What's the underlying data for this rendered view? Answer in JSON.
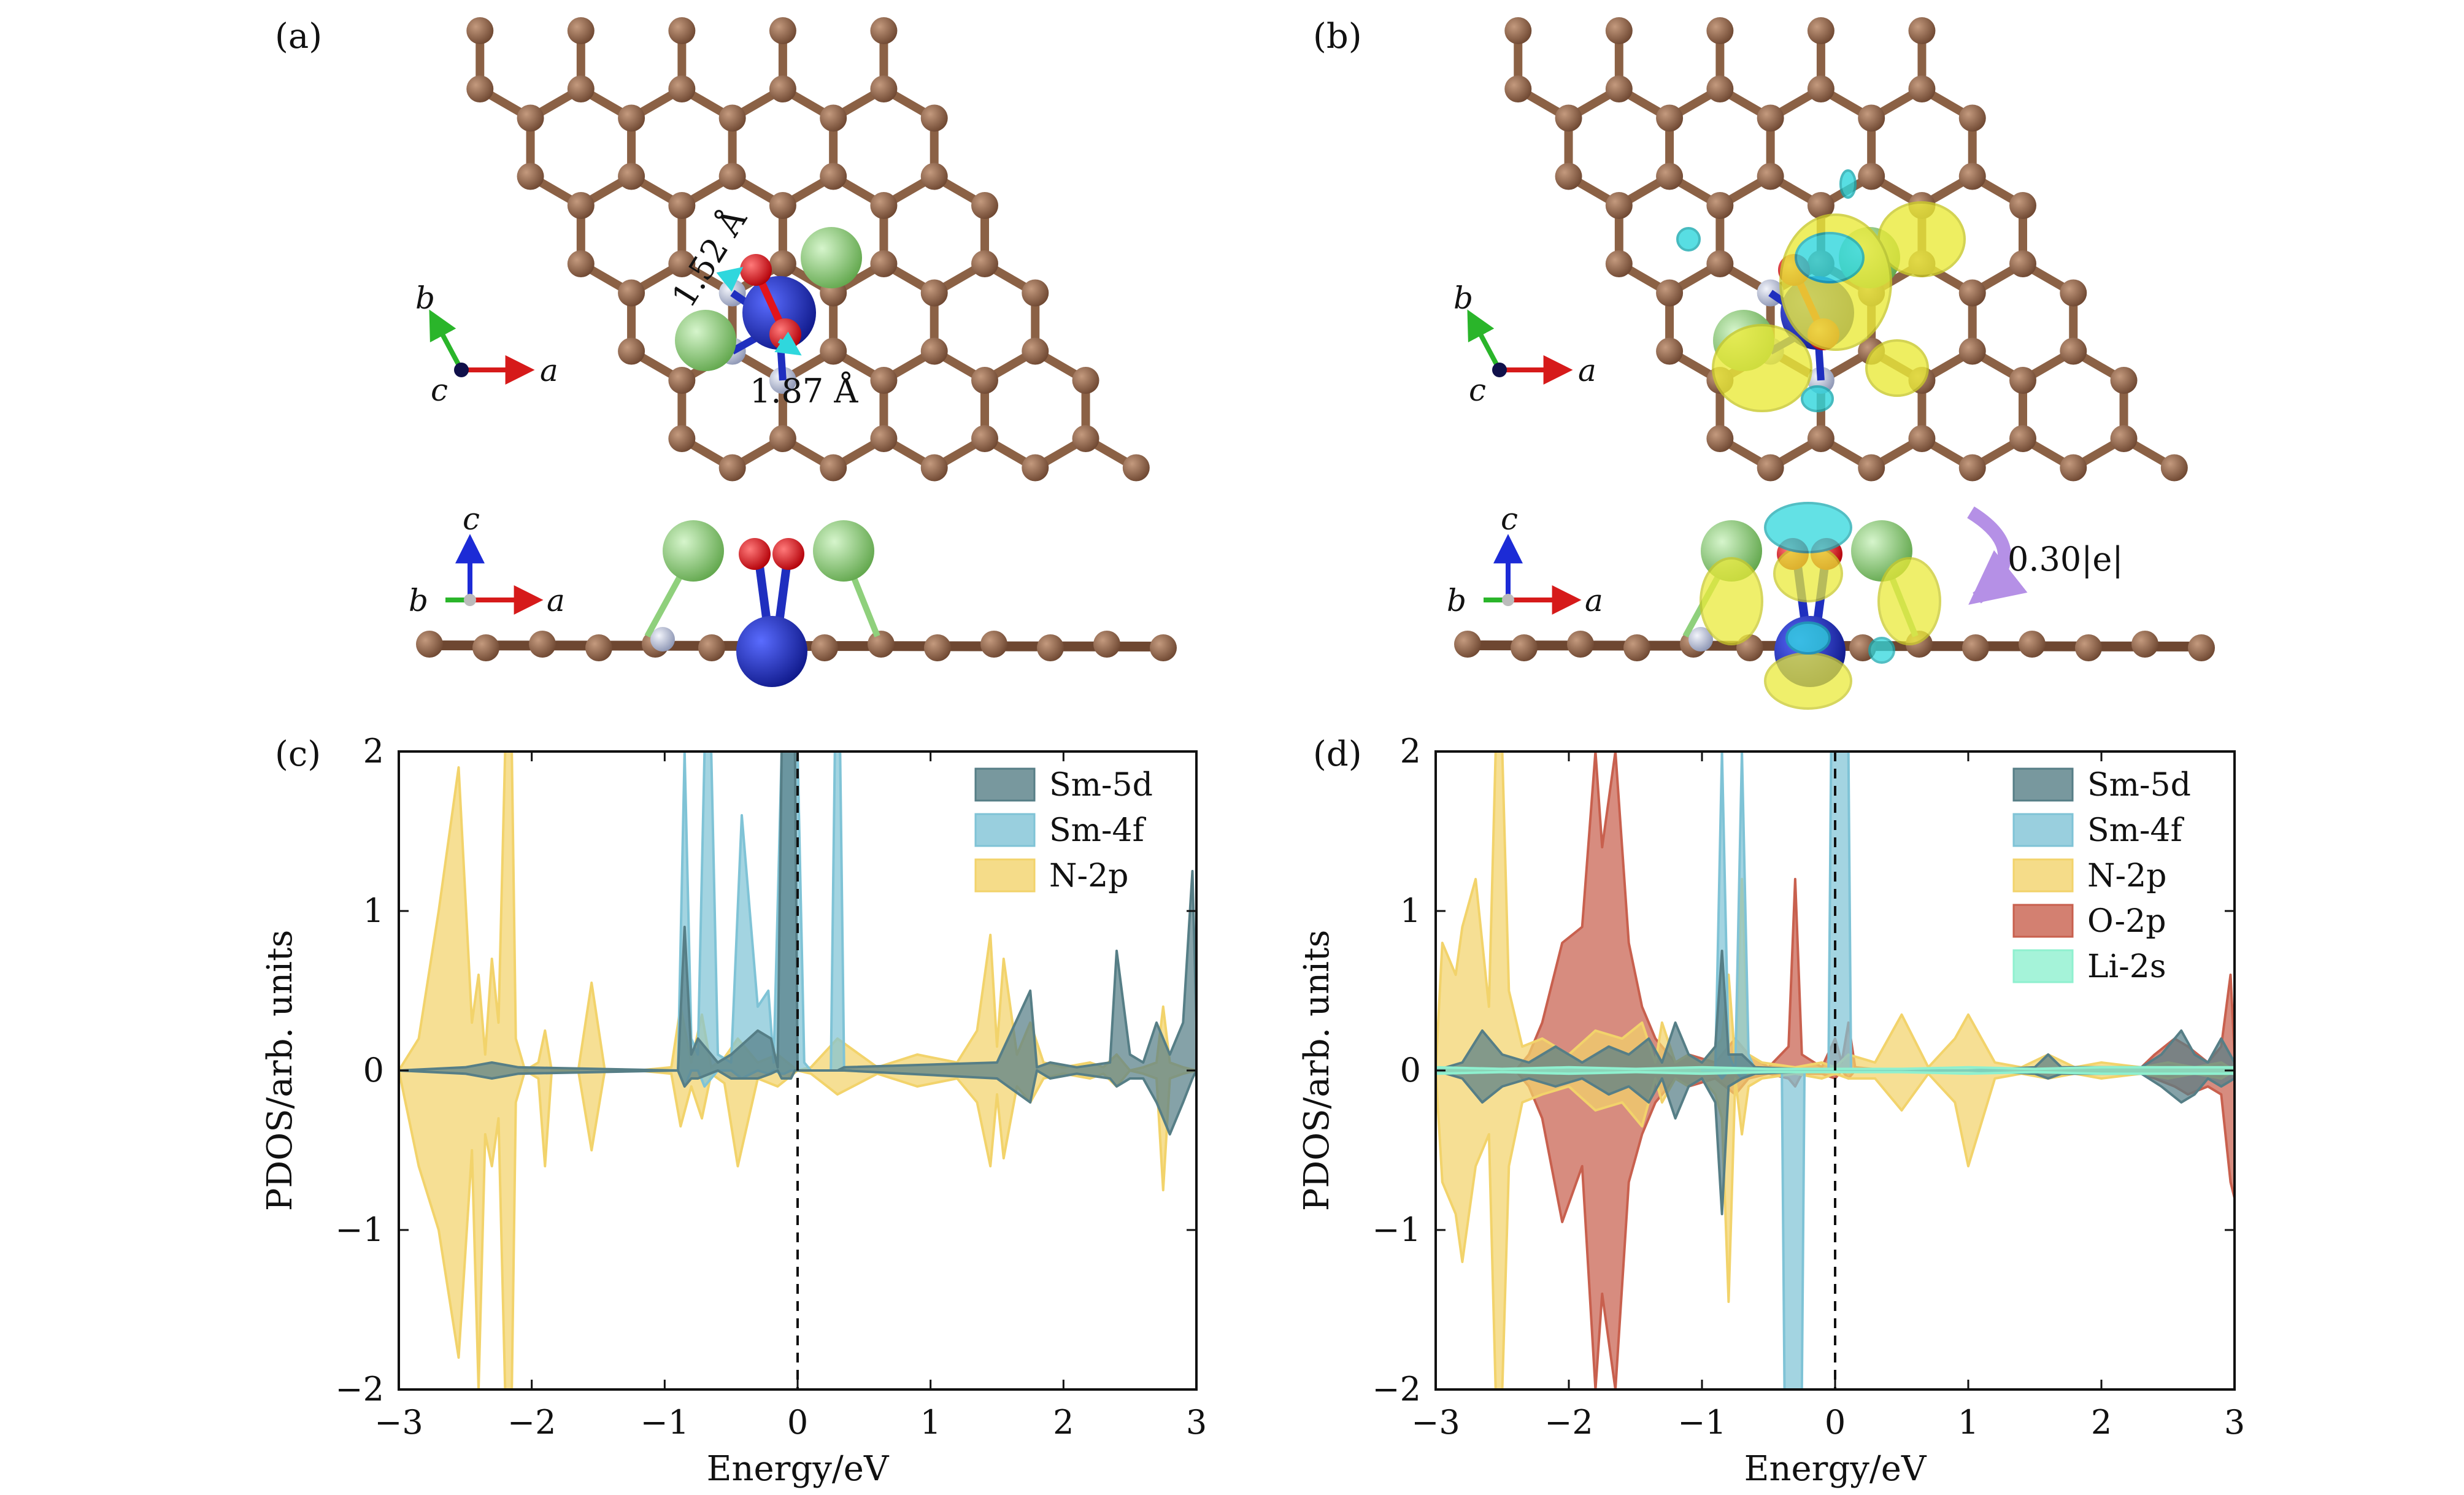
{
  "panels": {
    "a": {
      "label": "(a)",
      "bond_1": "1.52 Å",
      "bond_2": "1.87 Å"
    },
    "b": {
      "label": "(b)",
      "charge_transfer": "0.30|e|"
    },
    "c": {
      "label": "(c)"
    },
    "d": {
      "label": "(d)"
    }
  },
  "crystal_axes": {
    "a": "a",
    "b": "b",
    "c": "c"
  },
  "colors": {
    "carbon": "#8b6145",
    "nitrogen": "#b0b8cf",
    "samarium": "#1f2fbf",
    "oxygen": "#e3141b",
    "lithium": "#8fd07c",
    "iso_positive": "#eaea3a",
    "iso_negative": "#2fd7dd",
    "arrow_transfer": "#b590e6",
    "Sm-5d": "#567e86",
    "Sm-4f": "#7fc3d6",
    "N-2p": "#f2d36b",
    "O-2p": "#c8604e",
    "Li-2s": "#8ff0cf"
  },
  "chart_data": [
    {
      "type": "area",
      "panel": "(c)",
      "xlabel": "Energy/eV",
      "ylabel": "PDOS/arb. units",
      "xlim": [
        -3,
        3
      ],
      "ylim": [
        -2,
        2
      ],
      "xticks": [
        -3,
        -2,
        -1,
        0,
        1,
        2,
        3
      ],
      "yticks": [
        -2,
        -1,
        0,
        1,
        2
      ],
      "fermi_level": 0,
      "legend_position": "top-right",
      "series": [
        {
          "name": "N-2p",
          "color": "#f2d36b",
          "x": [
            -3,
            -2.85,
            -2.7,
            -2.55,
            -2.45,
            -2.4,
            -2.35,
            -2.3,
            -2.25,
            -2.2,
            -2.17,
            -2.15,
            -2.12,
            -2.05,
            -1.95,
            -1.9,
            -1.85,
            -1.65,
            -1.55,
            -1.45,
            -1.2,
            -0.95,
            -0.88,
            -0.8,
            -0.72,
            -0.65,
            -0.55,
            -0.45,
            -0.3,
            -0.15,
            0,
            0.1,
            0.3,
            0.6,
            0.9,
            1.2,
            1.35,
            1.45,
            1.5,
            1.55,
            1.65,
            1.75,
            1.85,
            2.0,
            2.2,
            2.3,
            2.4,
            2.5,
            2.6,
            2.7,
            2.75,
            2.8,
            2.9,
            3
          ],
          "upper": [
            0,
            0.2,
            1.0,
            1.9,
            0.3,
            0.6,
            0.1,
            0.7,
            0.3,
            2.0,
            2.0,
            2.0,
            0.2,
            0,
            0.05,
            0.25,
            0,
            0,
            0.55,
            0,
            0,
            0.02,
            0.4,
            0.05,
            0.35,
            0.02,
            0.08,
            0.2,
            0.05,
            0.1,
            0,
            0.02,
            0.2,
            0.02,
            0.1,
            0.05,
            0.25,
            0.85,
            0.15,
            0.7,
            0.1,
            0.3,
            0.05,
            0.02,
            0.05,
            0.02,
            0.1,
            0,
            0.02,
            0.05,
            0.4,
            0.05,
            0.02,
            0
          ],
          "lower": [
            0,
            -0.6,
            -1.0,
            -1.8,
            -0.5,
            -2.0,
            -0.4,
            -0.6,
            -0.3,
            -2.0,
            -2.0,
            -2.0,
            -0.2,
            0,
            -0.05,
            -0.6,
            0,
            0,
            -0.5,
            0,
            0,
            -0.02,
            -0.35,
            -0.1,
            -0.3,
            -0.02,
            -0.08,
            -0.6,
            -0.05,
            -0.1,
            0,
            -0.02,
            -0.15,
            -0.02,
            -0.1,
            -0.05,
            -0.2,
            -0.6,
            -0.15,
            -0.55,
            -0.1,
            -0.2,
            -0.05,
            -0.02,
            -0.05,
            -0.02,
            -0.1,
            0,
            -0.02,
            -0.05,
            -0.75,
            -0.05,
            -0.02,
            0
          ]
        },
        {
          "name": "Sm-4f",
          "color": "#7fc3d6",
          "x": [
            -1,
            -0.9,
            -0.85,
            -0.8,
            -0.75,
            -0.7,
            -0.65,
            -0.6,
            -0.5,
            -0.42,
            -0.3,
            -0.22,
            -0.18,
            -0.12,
            -0.1,
            -0.05,
            0,
            0.05,
            0.1,
            0.25,
            0.28,
            0.32,
            0.35,
            0.4
          ],
          "upper": [
            0,
            0,
            2.0,
            0.2,
            0.1,
            2.0,
            2.0,
            0.1,
            0.05,
            1.6,
            0.4,
            0.5,
            0.05,
            2.0,
            2.0,
            2.0,
            2.0,
            0.05,
            0,
            0,
            2.0,
            2.0,
            0,
            0
          ],
          "lower": [
            0,
            0,
            -0.1,
            0,
            0,
            -0.1,
            -0.05,
            0,
            0,
            -0.05,
            0,
            -0.02,
            0,
            -0.02,
            -0.02,
            0,
            0,
            0,
            0,
            0,
            0,
            0,
            0,
            0
          ]
        },
        {
          "name": "Sm-5d",
          "color": "#567e86",
          "x": [
            -3,
            -2.5,
            -2.3,
            -2.1,
            -0.9,
            -0.85,
            -0.8,
            -0.75,
            -0.6,
            -0.5,
            -0.3,
            -0.2,
            -0.15,
            -0.12,
            -0.05,
            -0.02,
            0,
            0.3,
            0.35,
            1.5,
            1.75,
            1.8,
            1.9,
            2.1,
            2.35,
            2.4,
            2.5,
            2.6,
            2.7,
            2.8,
            2.9,
            2.97,
            3
          ],
          "upper": [
            0,
            0.02,
            0.05,
            0.02,
            0,
            0.9,
            0.1,
            0.2,
            0.05,
            0.1,
            0.25,
            0.2,
            0.02,
            2.0,
            2.0,
            2.0,
            0,
            0,
            0.02,
            0.05,
            0.5,
            0.02,
            0.05,
            0.02,
            0.05,
            0.75,
            0.1,
            0.05,
            0.3,
            0.1,
            0.3,
            1.25,
            0.3
          ],
          "lower": [
            0,
            -0.02,
            -0.05,
            -0.02,
            0,
            -0.1,
            -0.05,
            -0.05,
            0,
            -0.05,
            -0.05,
            -0.02,
            0,
            -0.05,
            -0.05,
            0,
            0,
            0,
            0,
            -0.05,
            -0.2,
            0,
            -0.05,
            -0.02,
            -0.05,
            -0.1,
            -0.05,
            -0.05,
            -0.2,
            -0.4,
            -0.2,
            -0.05,
            0
          ]
        }
      ]
    },
    {
      "type": "area",
      "panel": "(d)",
      "xlabel": "Energy/eV",
      "ylabel": "PDOS/arb. units",
      "xlim": [
        -3,
        3
      ],
      "ylim": [
        -2,
        2
      ],
      "xticks": [
        -3,
        -2,
        -1,
        0,
        1,
        2,
        3
      ],
      "yticks": [
        -2,
        -1,
        0,
        1,
        2
      ],
      "fermi_level": 0,
      "legend_position": "top-right",
      "series": [
        {
          "name": "O-2p",
          "color": "#c8604e",
          "x": [
            -3,
            -2.4,
            -2.3,
            -2.2,
            -2.05,
            -1.9,
            -1.8,
            -1.75,
            -1.65,
            -1.55,
            -1.45,
            -1.35,
            -1.2,
            -1.1,
            -0.9,
            -0.75,
            -0.65,
            -0.5,
            -0.35,
            -0.3,
            -0.25,
            -0.1,
            0,
            0.05,
            0.1,
            0.15,
            0.4,
            1.5,
            2.3,
            2.4,
            2.55,
            2.65,
            2.8,
            2.9,
            2.97,
            3
          ],
          "upper": [
            0,
            0,
            0.1,
            0.3,
            0.8,
            0.9,
            2.0,
            1.4,
            2.0,
            0.8,
            0.4,
            0.2,
            0.05,
            0.1,
            0.05,
            0.2,
            0.1,
            0.02,
            0.15,
            1.2,
            0.1,
            0.02,
            0.2,
            0.05,
            0.3,
            0.02,
            0,
            0,
            0.02,
            0.1,
            0.2,
            0.15,
            0.05,
            0.15,
            0.6,
            0.1
          ],
          "lower": [
            0,
            0,
            -0.1,
            -0.3,
            -0.95,
            -0.6,
            -2.0,
            -1.4,
            -2.0,
            -0.7,
            -0.4,
            -0.2,
            -0.05,
            -0.1,
            -0.05,
            -0.15,
            -0.05,
            -0.02,
            -0.05,
            -0.1,
            -0.02,
            -0.02,
            -0.05,
            0,
            -0.05,
            0,
            0,
            0,
            -0.02,
            -0.05,
            -0.1,
            -0.15,
            -0.1,
            -0.15,
            -0.7,
            -0.8
          ]
        },
        {
          "name": "N-2p",
          "color": "#f2d36b",
          "x": [
            -3,
            -2.95,
            -2.85,
            -2.8,
            -2.7,
            -2.6,
            -2.55,
            -2.5,
            -2.45,
            -2.35,
            -2.2,
            -2.0,
            -1.8,
            -1.6,
            -1.45,
            -1.35,
            -1.3,
            -1.2,
            -1.1,
            -1.0,
            -0.9,
            -0.85,
            -0.8,
            -0.75,
            -0.7,
            -0.65,
            -0.55,
            -0.3,
            -0.1,
            0,
            0.1,
            0.3,
            0.5,
            0.7,
            0.9,
            1.0,
            1.2,
            1.4,
            1.6,
            1.8,
            2.0,
            2.3,
            2.5,
            2.7,
            2.9,
            3
          ],
          "upper": [
            0,
            0.8,
            0.6,
            0.9,
            1.2,
            0.4,
            2.0,
            2.0,
            0.5,
            0.15,
            0.2,
            0.1,
            0.25,
            0.2,
            0.3,
            0.05,
            0.3,
            0.05,
            0.1,
            0.05,
            0.15,
            0.2,
            0.6,
            0.05,
            1.2,
            0.1,
            0.05,
            0.02,
            0.05,
            0.02,
            0.1,
            0.05,
            0.35,
            0.02,
            0.2,
            0.35,
            0.05,
            0.02,
            0.1,
            0.02,
            0.05,
            0.02,
            0.05,
            0.02,
            0.05,
            0
          ],
          "lower": [
            0,
            -0.7,
            -0.9,
            -1.2,
            -0.6,
            -0.4,
            -2.0,
            -2.0,
            -0.6,
            -0.2,
            -0.15,
            -0.1,
            -0.25,
            -0.2,
            -0.35,
            -0.05,
            -0.2,
            -0.05,
            -0.1,
            -0.05,
            -0.15,
            -0.3,
            -1.45,
            -0.05,
            -0.4,
            -0.1,
            -0.05,
            -0.02,
            -0.05,
            -0.02,
            -0.05,
            -0.05,
            -0.25,
            -0.02,
            -0.2,
            -0.6,
            -0.05,
            -0.02,
            -0.05,
            -0.02,
            -0.05,
            -0.02,
            -0.05,
            -0.02,
            -0.05,
            0
          ]
        },
        {
          "name": "Sm-4f",
          "color": "#7fc3d6",
          "x": [
            -1.0,
            -0.9,
            -0.85,
            -0.8,
            -0.75,
            -0.7,
            -0.65,
            -0.6,
            -0.4,
            -0.38,
            -0.25,
            -0.23,
            -0.05,
            -0.03,
            0.1,
            0.12
          ],
          "upper": [
            0,
            0,
            2.0,
            0.1,
            0,
            2.0,
            0.1,
            0,
            0,
            0,
            0,
            0,
            0,
            2.0,
            2.0,
            0
          ],
          "lower": [
            0,
            0,
            -0.05,
            0,
            0,
            -0.05,
            0,
            0,
            0,
            -2.0,
            -2.0,
            0,
            0,
            0,
            0,
            0
          ]
        },
        {
          "name": "Sm-5d",
          "color": "#567e86",
          "x": [
            -3,
            -2.8,
            -2.65,
            -2.5,
            -2.3,
            -2.1,
            -1.9,
            -1.7,
            -1.55,
            -1.4,
            -1.3,
            -1.2,
            -1.1,
            -1.0,
            -0.9,
            -0.85,
            -0.8,
            -0.7,
            -0.6,
            0,
            1.0,
            1.5,
            1.6,
            1.7,
            2.3,
            2.45,
            2.6,
            2.7,
            2.8,
            2.9,
            3
          ],
          "upper": [
            0,
            0.05,
            0.25,
            0.1,
            0.05,
            0.15,
            0.05,
            0.15,
            0.1,
            0.2,
            0.05,
            0.3,
            0.1,
            0.05,
            0.15,
            0.75,
            0.1,
            0.1,
            0.02,
            0,
            0,
            0.02,
            0.1,
            0.02,
            0.02,
            0.1,
            0.25,
            0.1,
            0.05,
            0.2,
            0.05
          ],
          "lower": [
            0,
            -0.05,
            -0.2,
            -0.1,
            -0.05,
            -0.1,
            -0.05,
            -0.15,
            -0.1,
            -0.2,
            -0.05,
            -0.3,
            -0.1,
            -0.05,
            -0.2,
            -0.9,
            -0.1,
            -0.05,
            -0.02,
            0,
            0,
            -0.02,
            -0.05,
            -0.02,
            -0.02,
            -0.1,
            -0.2,
            -0.15,
            -0.05,
            -0.1,
            -0.05
          ]
        },
        {
          "name": "Li-2s",
          "color": "#8ff0cf",
          "x": [
            -3,
            -2.5,
            -2.0,
            -1.5,
            -1.0,
            -0.5,
            0,
            0.5,
            1.0,
            1.5,
            2.0,
            2.5,
            3
          ],
          "upper": [
            0.02,
            0.01,
            0.02,
            0.01,
            0.02,
            0.01,
            0.01,
            0.01,
            0.02,
            0.01,
            0.02,
            0.02,
            0.02
          ],
          "lower": [
            -0.02,
            -0.01,
            -0.02,
            -0.01,
            -0.02,
            -0.01,
            -0.01,
            -0.01,
            -0.02,
            -0.01,
            -0.02,
            -0.02,
            -0.02
          ]
        }
      ]
    }
  ]
}
